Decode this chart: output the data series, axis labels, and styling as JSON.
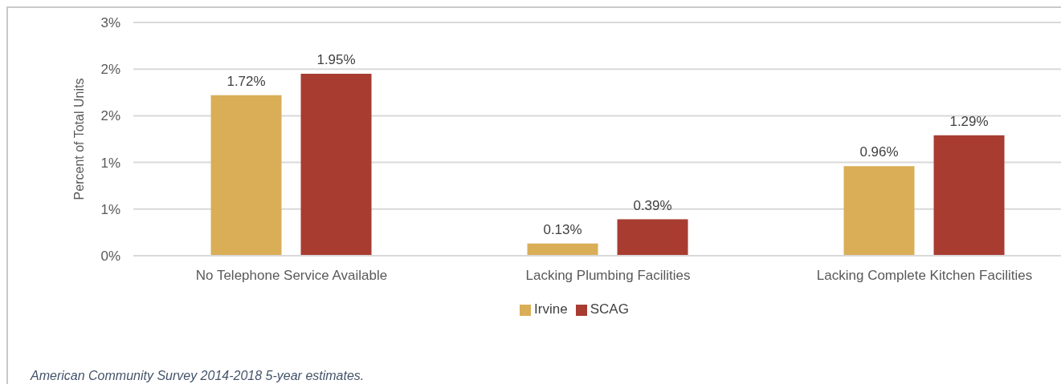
{
  "chart_data": {
    "type": "bar",
    "ylabel": "Percent of Total Units",
    "categories": [
      "No Telephone Service Available",
      "Lacking Plumbing Facilities",
      "Lacking Complete Kitchen Facilities"
    ],
    "series": [
      {
        "name": "Irvine",
        "color": "#d9ae57",
        "values": [
          1.72,
          0.13,
          0.96
        ],
        "value_labels": [
          "1.72%",
          "0.13%",
          "0.96%"
        ]
      },
      {
        "name": "SCAG",
        "color": "#a83c31",
        "values": [
          1.95,
          0.39,
          1.29
        ],
        "value_labels": [
          "1.95%",
          "0.39%",
          "1.29%"
        ]
      }
    ],
    "ylim": [
      0,
      2.5
    ],
    "yticks": [
      {
        "value": 0,
        "label": "0%"
      },
      {
        "value": 0.5,
        "label": "1%"
      },
      {
        "value": 1,
        "label": "1%"
      },
      {
        "value": 1.5,
        "label": "2%"
      },
      {
        "value": 2,
        "label": "2%"
      },
      {
        "value": 2.5,
        "label": "3%"
      }
    ],
    "grid": "y",
    "legend": "bottom",
    "annotations": [
      "American Community Survey 2014-2018 5-year estimates."
    ]
  }
}
